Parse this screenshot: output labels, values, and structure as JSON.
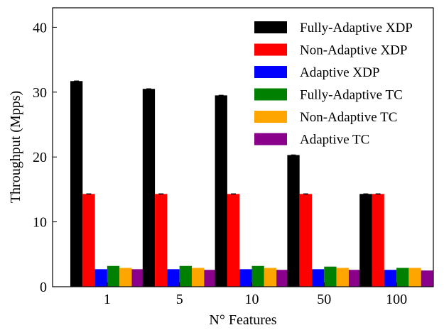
{
  "chart_data": {
    "type": "bar",
    "xlabel": "N° Features",
    "ylabel": "Throughput (Mpps)",
    "categories": [
      "1",
      "5",
      "10",
      "50",
      "100"
    ],
    "ylim": [
      0,
      43
    ],
    "yticks": [
      0,
      10,
      20,
      30,
      40
    ],
    "legend_position": "top-right",
    "series": [
      {
        "name": "Fully-Adaptive XDP",
        "color": "#000000",
        "values": [
          31.7,
          30.5,
          29.5,
          20.3,
          14.3
        ]
      },
      {
        "name": "Non-Adaptive XDP",
        "color": "#ff0000",
        "values": [
          14.3,
          14.3,
          14.3,
          14.3,
          14.3
        ]
      },
      {
        "name": "Adaptive XDP",
        "color": "#0000ff",
        "values": [
          2.7,
          2.7,
          2.7,
          2.7,
          2.6
        ]
      },
      {
        "name": "Fully-Adaptive TC",
        "color": "#008000",
        "values": [
          3.2,
          3.2,
          3.2,
          3.1,
          2.9
        ]
      },
      {
        "name": "Non-Adaptive TC",
        "color": "#ffa500",
        "values": [
          2.9,
          2.9,
          2.9,
          2.9,
          2.9
        ]
      },
      {
        "name": "Adaptive TC",
        "color": "#8b008b",
        "values": [
          2.7,
          2.6,
          2.6,
          2.6,
          2.5
        ]
      }
    ]
  }
}
